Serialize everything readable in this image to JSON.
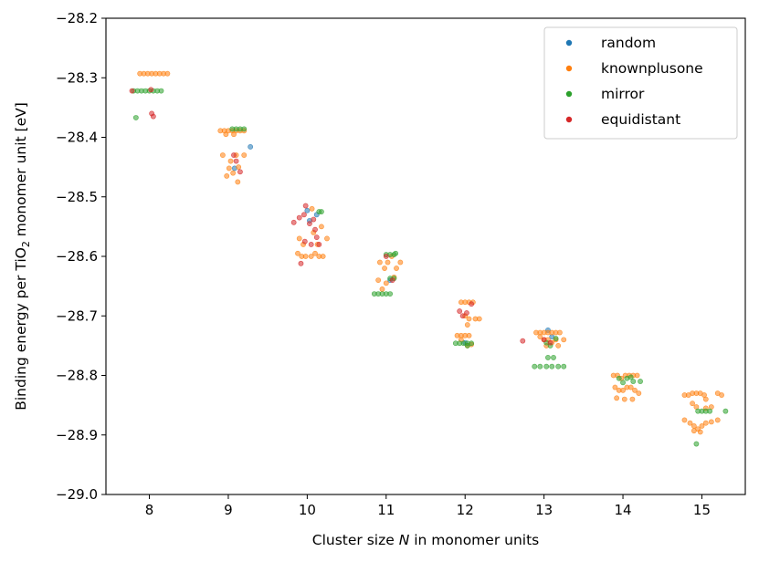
{
  "chart_data": {
    "type": "scatter",
    "xlabel_parts": [
      "Cluster size ",
      "N",
      " in monomer units"
    ],
    "ylabel_parts": [
      "Binding energy per TiO",
      "2",
      " monomer unit [eV]"
    ],
    "xlim": [
      7.45,
      15.55
    ],
    "ylim": [
      -29.0,
      -28.2
    ],
    "xticks": [
      8,
      9,
      10,
      11,
      12,
      13,
      14,
      15
    ],
    "yticks": [
      -28.2,
      -28.3,
      -28.4,
      -28.5,
      -28.6,
      -28.7,
      -28.8,
      -28.9,
      -29.0
    ],
    "ytick_labels": [
      "−28.2",
      "−28.3",
      "−28.4",
      "−28.5",
      "−28.6",
      "−28.7",
      "−28.8",
      "−28.9",
      "−29.0"
    ],
    "grid": false,
    "legend_position": "top-right",
    "series": [
      {
        "name": "random",
        "color": "#1f77b4",
        "points": [
          [
            9.08,
            -28.452
          ],
          [
            9.28,
            -28.416
          ],
          [
            10.0,
            -28.523
          ],
          [
            10.03,
            -28.54
          ],
          [
            10.12,
            -28.53
          ],
          [
            11.05,
            -28.64
          ],
          [
            12.0,
            -28.745
          ],
          [
            13.05,
            -28.724
          ],
          [
            13.1,
            -28.735
          ]
        ]
      },
      {
        "name": "knownplusone",
        "color": "#ff7f0e",
        "points": [
          [
            7.88,
            -28.293
          ],
          [
            7.93,
            -28.293
          ],
          [
            7.98,
            -28.293
          ],
          [
            8.03,
            -28.293
          ],
          [
            8.08,
            -28.293
          ],
          [
            8.13,
            -28.293
          ],
          [
            8.18,
            -28.293
          ],
          [
            8.23,
            -28.293
          ],
          [
            8.9,
            -28.389
          ],
          [
            8.95,
            -28.389
          ],
          [
            9.0,
            -28.389
          ],
          [
            9.05,
            -28.389
          ],
          [
            9.1,
            -28.389
          ],
          [
            9.15,
            -28.389
          ],
          [
            9.2,
            -28.389
          ],
          [
            8.97,
            -28.395
          ],
          [
            9.07,
            -28.395
          ],
          [
            8.93,
            -28.43
          ],
          [
            9.03,
            -28.44
          ],
          [
            9.1,
            -28.43
          ],
          [
            9.13,
            -28.45
          ],
          [
            9.01,
            -28.452
          ],
          [
            9.06,
            -28.46
          ],
          [
            8.98,
            -28.465
          ],
          [
            9.12,
            -28.475
          ],
          [
            9.2,
            -28.43
          ],
          [
            9.88,
            -28.595
          ],
          [
            9.93,
            -28.6
          ],
          [
            9.98,
            -28.6
          ],
          [
            10.05,
            -28.6
          ],
          [
            10.1,
            -28.595
          ],
          [
            10.15,
            -28.6
          ],
          [
            10.2,
            -28.6
          ],
          [
            9.9,
            -28.57
          ],
          [
            9.95,
            -28.58
          ],
          [
            10.08,
            -28.56
          ],
          [
            10.13,
            -28.58
          ],
          [
            10.25,
            -28.57
          ],
          [
            10.18,
            -28.55
          ],
          [
            10.06,
            -28.52
          ],
          [
            10.92,
            -28.61
          ],
          [
            10.98,
            -28.62
          ],
          [
            11.02,
            -28.61
          ],
          [
            11.07,
            -28.6
          ],
          [
            11.13,
            -28.62
          ],
          [
            11.18,
            -28.61
          ],
          [
            10.9,
            -28.64
          ],
          [
            10.95,
            -28.655
          ],
          [
            11.0,
            -28.645
          ],
          [
            11.1,
            -28.635
          ],
          [
            11.95,
            -28.677
          ],
          [
            12.0,
            -28.677
          ],
          [
            12.05,
            -28.677
          ],
          [
            12.1,
            -28.677
          ],
          [
            12.0,
            -28.7
          ],
          [
            12.05,
            -28.705
          ],
          [
            12.13,
            -28.705
          ],
          [
            12.18,
            -28.705
          ],
          [
            12.03,
            -28.715
          ],
          [
            11.9,
            -28.733
          ],
          [
            11.95,
            -28.733
          ],
          [
            12.0,
            -28.733
          ],
          [
            12.05,
            -28.733
          ],
          [
            11.95,
            -28.74
          ],
          [
            12.03,
            -28.75
          ],
          [
            12.08,
            -28.748
          ],
          [
            12.9,
            -28.728
          ],
          [
            12.95,
            -28.728
          ],
          [
            13.0,
            -28.728
          ],
          [
            13.05,
            -28.728
          ],
          [
            13.1,
            -28.728
          ],
          [
            13.15,
            -28.728
          ],
          [
            13.2,
            -28.728
          ],
          [
            12.95,
            -28.735
          ],
          [
            13.0,
            -28.74
          ],
          [
            13.05,
            -28.74
          ],
          [
            13.1,
            -28.745
          ],
          [
            13.15,
            -28.74
          ],
          [
            13.03,
            -28.75
          ],
          [
            13.18,
            -28.75
          ],
          [
            13.25,
            -28.74
          ],
          [
            13.88,
            -28.8
          ],
          [
            13.93,
            -28.8
          ],
          [
            13.98,
            -28.805
          ],
          [
            14.03,
            -28.8
          ],
          [
            14.08,
            -28.8
          ],
          [
            14.13,
            -28.8
          ],
          [
            14.18,
            -28.8
          ],
          [
            13.9,
            -28.82
          ],
          [
            13.95,
            -28.825
          ],
          [
            14.0,
            -28.825
          ],
          [
            14.05,
            -28.82
          ],
          [
            14.1,
            -28.82
          ],
          [
            14.15,
            -28.825
          ],
          [
            14.2,
            -28.83
          ],
          [
            13.92,
            -28.838
          ],
          [
            14.02,
            -28.84
          ],
          [
            14.12,
            -28.84
          ],
          [
            14.78,
            -28.833
          ],
          [
            14.83,
            -28.833
          ],
          [
            14.88,
            -28.83
          ],
          [
            14.93,
            -28.83
          ],
          [
            14.98,
            -28.83
          ],
          [
            15.03,
            -28.833
          ],
          [
            15.2,
            -28.83
          ],
          [
            15.25,
            -28.833
          ],
          [
            14.88,
            -28.847
          ],
          [
            14.93,
            -28.853
          ],
          [
            15.05,
            -28.855
          ],
          [
            15.12,
            -28.853
          ],
          [
            15.05,
            -28.84
          ],
          [
            14.78,
            -28.875
          ],
          [
            14.85,
            -28.88
          ],
          [
            14.9,
            -28.885
          ],
          [
            14.95,
            -28.89
          ],
          [
            15.0,
            -28.885
          ],
          [
            15.05,
            -28.88
          ],
          [
            15.12,
            -28.878
          ],
          [
            15.2,
            -28.875
          ],
          [
            14.9,
            -28.893
          ],
          [
            14.98,
            -28.895
          ]
        ]
      },
      {
        "name": "mirror",
        "color": "#2ca02c",
        "points": [
          [
            7.8,
            -28.322
          ],
          [
            7.85,
            -28.322
          ],
          [
            7.9,
            -28.322
          ],
          [
            7.95,
            -28.322
          ],
          [
            8.0,
            -28.322
          ],
          [
            8.05,
            -28.322
          ],
          [
            8.1,
            -28.322
          ],
          [
            8.15,
            -28.322
          ],
          [
            7.83,
            -28.367
          ],
          [
            9.05,
            -28.386
          ],
          [
            9.1,
            -28.386
          ],
          [
            9.15,
            -28.386
          ],
          [
            9.2,
            -28.386
          ],
          [
            10.15,
            -28.525
          ],
          [
            10.18,
            -28.525
          ],
          [
            10.85,
            -28.663
          ],
          [
            10.9,
            -28.663
          ],
          [
            10.95,
            -28.663
          ],
          [
            11.0,
            -28.663
          ],
          [
            11.05,
            -28.663
          ],
          [
            11.0,
            -28.597
          ],
          [
            11.05,
            -28.597
          ],
          [
            11.1,
            -28.597
          ],
          [
            11.12,
            -28.595
          ],
          [
            11.05,
            -28.637
          ],
          [
            11.1,
            -28.637
          ],
          [
            11.88,
            -28.746
          ],
          [
            11.93,
            -28.746
          ],
          [
            11.98,
            -28.746
          ],
          [
            12.03,
            -28.746
          ],
          [
            12.08,
            -28.746
          ],
          [
            12.03,
            -28.75
          ],
          [
            12.88,
            -28.785
          ],
          [
            12.95,
            -28.785
          ],
          [
            13.03,
            -28.785
          ],
          [
            13.1,
            -28.785
          ],
          [
            13.18,
            -28.785
          ],
          [
            13.25,
            -28.785
          ],
          [
            13.05,
            -28.77
          ],
          [
            13.12,
            -28.77
          ],
          [
            13.03,
            -28.745
          ],
          [
            13.08,
            -28.75
          ],
          [
            13.15,
            -28.738
          ],
          [
            13.95,
            -28.805
          ],
          [
            14.05,
            -28.805
          ],
          [
            14.1,
            -28.803
          ],
          [
            14.13,
            -28.81
          ],
          [
            14.22,
            -28.81
          ],
          [
            14.0,
            -28.812
          ],
          [
            14.95,
            -28.86
          ],
          [
            15.0,
            -28.86
          ],
          [
            15.05,
            -28.86
          ],
          [
            15.1,
            -28.86
          ],
          [
            15.3,
            -28.86
          ],
          [
            14.93,
            -28.915
          ]
        ]
      },
      {
        "name": "equidistant",
        "color": "#d62728",
        "points": [
          [
            7.78,
            -28.322
          ],
          [
            8.02,
            -28.32
          ],
          [
            8.03,
            -28.36
          ],
          [
            8.05,
            -28.365
          ],
          [
            9.07,
            -28.43
          ],
          [
            9.1,
            -28.44
          ],
          [
            9.15,
            -28.458
          ],
          [
            9.83,
            -28.543
          ],
          [
            9.9,
            -28.535
          ],
          [
            9.96,
            -28.53
          ],
          [
            9.98,
            -28.515
          ],
          [
            10.03,
            -28.545
          ],
          [
            10.08,
            -28.538
          ],
          [
            10.1,
            -28.555
          ],
          [
            10.12,
            -28.568
          ],
          [
            10.15,
            -28.58
          ],
          [
            9.97,
            -28.575
          ],
          [
            10.05,
            -28.58
          ],
          [
            9.92,
            -28.612
          ],
          [
            11.0,
            -28.6
          ],
          [
            11.08,
            -28.64
          ],
          [
            11.93,
            -28.692
          ],
          [
            11.97,
            -28.7
          ],
          [
            12.02,
            -28.695
          ],
          [
            12.08,
            -28.68
          ],
          [
            12.73,
            -28.742
          ],
          [
            13.0,
            -28.74
          ],
          [
            13.08,
            -28.745
          ]
        ]
      }
    ]
  }
}
